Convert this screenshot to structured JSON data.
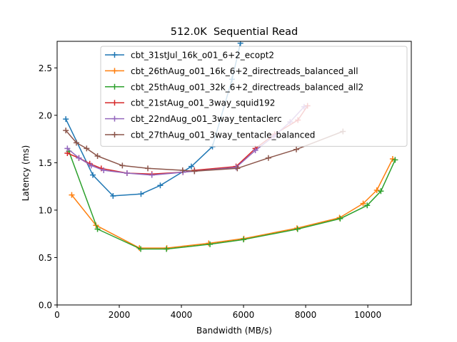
{
  "chart_data": {
    "type": "line",
    "title": "512.0K  Sequential Read",
    "xlabel": "Bandwidth (MB/s)",
    "ylabel": "Latency (ms)",
    "xlim": [
      0,
      11400
    ],
    "ylim": [
      0,
      2.78
    ],
    "xticks": [
      0,
      2000,
      4000,
      6000,
      8000,
      10000
    ],
    "yticks": [
      0.0,
      0.5,
      1.0,
      1.5,
      2.0,
      2.5
    ],
    "xtick_labels": [
      "0",
      "2000",
      "4000",
      "6000",
      "8000",
      "10000"
    ],
    "ytick_labels": [
      "0.0",
      "0.5",
      "1.0",
      "1.5",
      "2.0",
      "2.5"
    ],
    "grid": false,
    "legend_position": "top-right",
    "series": [
      {
        "name": "cbt_31stJul_16k_o01_6+2_ecopt2",
        "color": "#1f77b4",
        "marker": "+",
        "x": [
          280,
          1150,
          1800,
          2700,
          3320,
          4320,
          5000,
          5630,
          5900
        ],
        "y": [
          1.96,
          1.37,
          1.15,
          1.17,
          1.26,
          1.46,
          1.67,
          2.38,
          2.76
        ]
      },
      {
        "name": "cbt_26thAug_o01_16k_6+2_directreads_balanced_all",
        "color": "#ff7f0e",
        "marker": "+",
        "x": [
          470,
          1250,
          2650,
          3530,
          4880,
          6010,
          7720,
          9090,
          9850,
          10290,
          10800
        ],
        "y": [
          1.16,
          0.84,
          0.6,
          0.6,
          0.65,
          0.7,
          0.81,
          0.92,
          1.07,
          1.21,
          1.54
        ]
      },
      {
        "name": "cbt_25thAug_o01_32k_6+2_directreads_balanced_all2",
        "color": "#2ca02c",
        "marker": "+",
        "x": [
          380,
          1300,
          2690,
          3520,
          4920,
          6000,
          7740,
          9110,
          9980,
          10420,
          10880
        ],
        "y": [
          1.62,
          0.8,
          0.59,
          0.59,
          0.64,
          0.69,
          0.8,
          0.91,
          1.05,
          1.2,
          1.53
        ]
      },
      {
        "name": "cbt_21stAug_o01_3way_squid192",
        "color": "#d62728",
        "marker": "+",
        "x": [
          330,
          700,
          1050,
          1420,
          2250,
          3050,
          4050,
          4420,
          5760,
          6380,
          7000,
          7750,
          8060
        ],
        "y": [
          1.6,
          1.55,
          1.49,
          1.44,
          1.39,
          1.38,
          1.4,
          1.42,
          1.46,
          1.65,
          1.8,
          1.95,
          2.1
        ]
      },
      {
        "name": "cbt_22ndAug_o01_3way_tentaclerc",
        "color": "#9467bd",
        "marker": "+",
        "x": [
          330,
          700,
          1100,
          1500,
          2250,
          3050,
          4050,
          4420,
          5760,
          6380,
          6980,
          7500,
          7950
        ],
        "y": [
          1.65,
          1.55,
          1.47,
          1.42,
          1.39,
          1.37,
          1.4,
          1.41,
          1.45,
          1.63,
          1.78,
          1.93,
          2.09
        ]
      },
      {
        "name": "cbt_27thAug_o01_3way_tentacle_balanced",
        "color": "#8c564b",
        "marker": "+",
        "x": [
          280,
          620,
          950,
          1300,
          2100,
          2920,
          4040,
          4420,
          5800,
          6800,
          7700,
          9200
        ],
        "y": [
          1.84,
          1.71,
          1.65,
          1.57,
          1.47,
          1.44,
          1.42,
          1.41,
          1.44,
          1.55,
          1.64,
          1.83
        ]
      }
    ]
  }
}
